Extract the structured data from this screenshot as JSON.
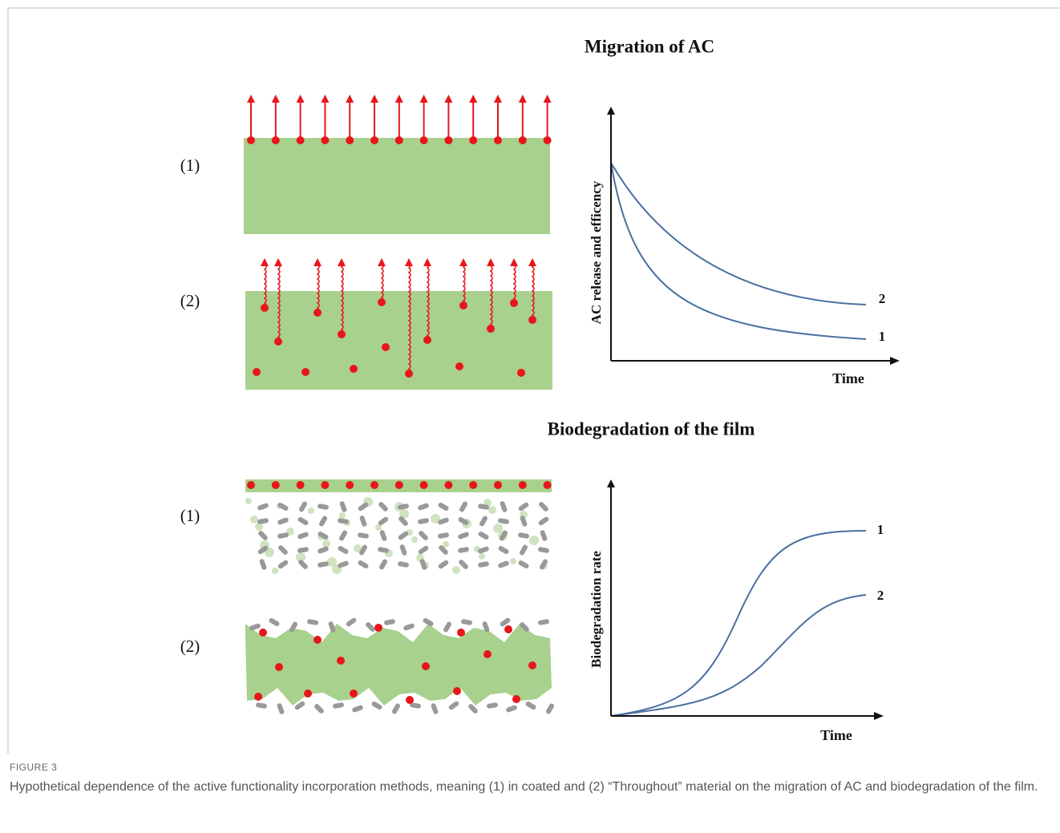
{
  "figure": {
    "panels": [
      {
        "title": "Migration of AC",
        "rows": [
          "(1)",
          "(2)"
        ],
        "y_axis_label": "AC release and efficency",
        "x_axis_label": "Time",
        "curve_labels": [
          "2",
          "1"
        ]
      },
      {
        "title": "Biodegradation of the film",
        "rows": [
          "(1)",
          "(2)"
        ],
        "y_axis_label": "Biodegradation rate",
        "x_axis_label": "Time",
        "curve_labels": [
          "1",
          "2"
        ]
      }
    ]
  },
  "caption": {
    "label": "FIGURE 3",
    "text": "Hypothetical dependence of the active functionality incorporation methods, meaning (1) in coated and (2) “Throughout” material on the migration of AC and biodegradation of the film."
  }
}
